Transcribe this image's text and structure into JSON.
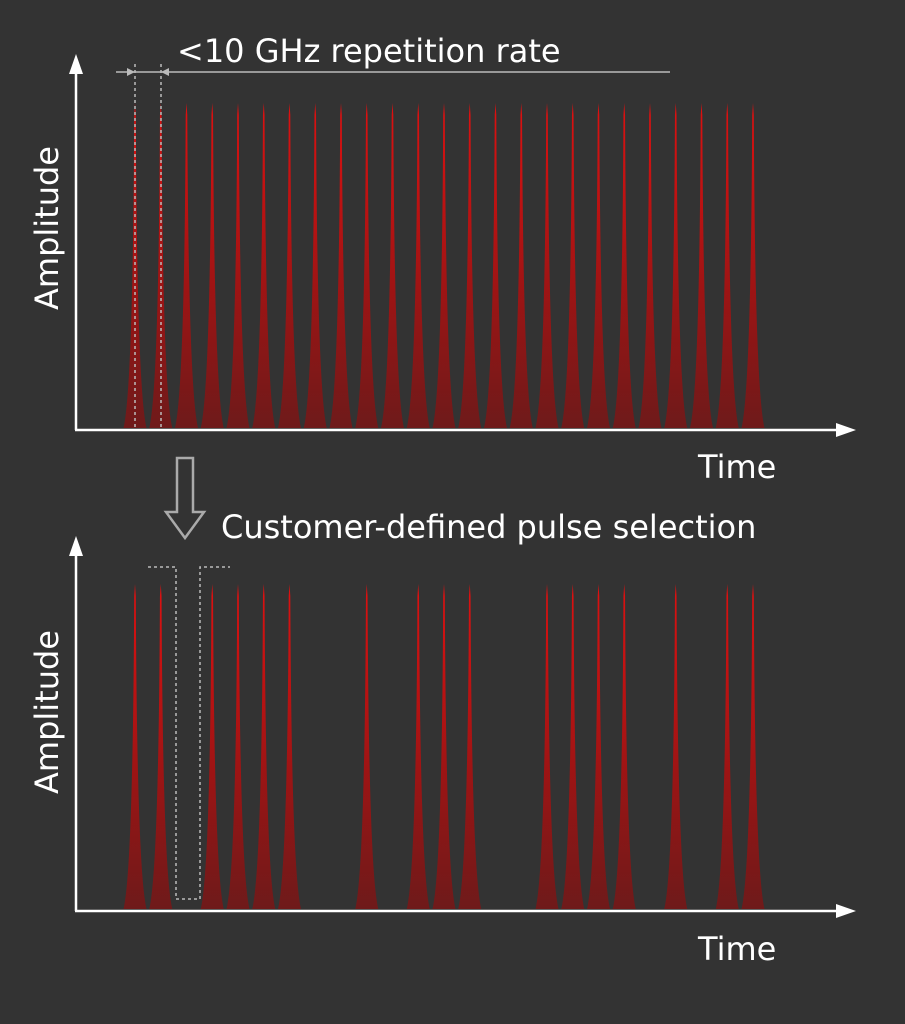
{
  "colors": {
    "background": "#333333",
    "axis": "#ffffff",
    "pulse_peak": "#e01010",
    "pulse_base": "#6e1a1a",
    "guide": "#bbbbbb",
    "down_arrow": "#aaaaaa"
  },
  "top_panel": {
    "annotation": "<10 GHz repetition rate",
    "ylabel": "Amplitude",
    "xlabel": "Time",
    "pulse_count": 25
  },
  "transition": {
    "label": "Customer-defined pulse selection",
    "icon": "down-arrow-icon"
  },
  "bottom_panel": {
    "ylabel": "Amplitude",
    "xlabel": "Time",
    "selected_slots": [
      0,
      1,
      3,
      4,
      5,
      6,
      9,
      11,
      12,
      13,
      16,
      17,
      18,
      19,
      21,
      23,
      24
    ],
    "gate_slot": 2
  }
}
